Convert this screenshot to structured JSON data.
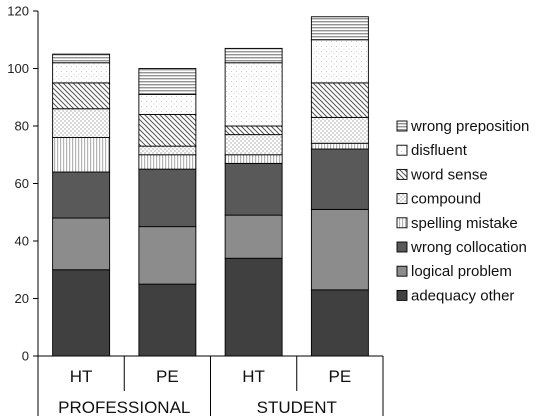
{
  "chart_data": {
    "type": "bar",
    "stacked": true,
    "categories": [
      "HT",
      "PE",
      "HT",
      "PE"
    ],
    "groups": [
      {
        "label": "PROFESSIONAL",
        "span": [
          0,
          1
        ]
      },
      {
        "label": "STUDENT",
        "span": [
          2,
          3
        ]
      }
    ],
    "ylim": [
      0,
      120
    ],
    "yticks": [
      0,
      20,
      40,
      60,
      80,
      100,
      120
    ],
    "grid": false,
    "legend_position": "right",
    "series": [
      {
        "name": "adequacy other",
        "values": [
          30,
          25,
          34,
          23
        ],
        "fill": "#404040",
        "pattern": "solid"
      },
      {
        "name": "logical problem",
        "values": [
          18,
          20,
          15,
          28
        ],
        "fill": "#8c8c8c",
        "pattern": "solid"
      },
      {
        "name": "wrong collocation",
        "values": [
          16,
          20,
          18,
          21
        ],
        "fill": "#595959",
        "pattern": "solid"
      },
      {
        "name": "spelling mistake",
        "values": [
          12,
          5,
          3,
          2
        ],
        "fill": "#ffffff",
        "pattern": "vertical-lines"
      },
      {
        "name": "compound",
        "values": [
          10,
          3,
          7,
          9
        ],
        "fill": "#ffffff",
        "pattern": "dots"
      },
      {
        "name": "word sense",
        "values": [
          9,
          11,
          3,
          12
        ],
        "fill": "#ffffff",
        "pattern": "diagonal"
      },
      {
        "name": "disfluent",
        "values": [
          7,
          7,
          22,
          15
        ],
        "fill": "#ffffff",
        "pattern": "sparse-dots"
      },
      {
        "name": "wrong preposition",
        "values": [
          3,
          9,
          5,
          8
        ],
        "fill": "#ffffff",
        "pattern": "horizontal-lines"
      }
    ]
  }
}
